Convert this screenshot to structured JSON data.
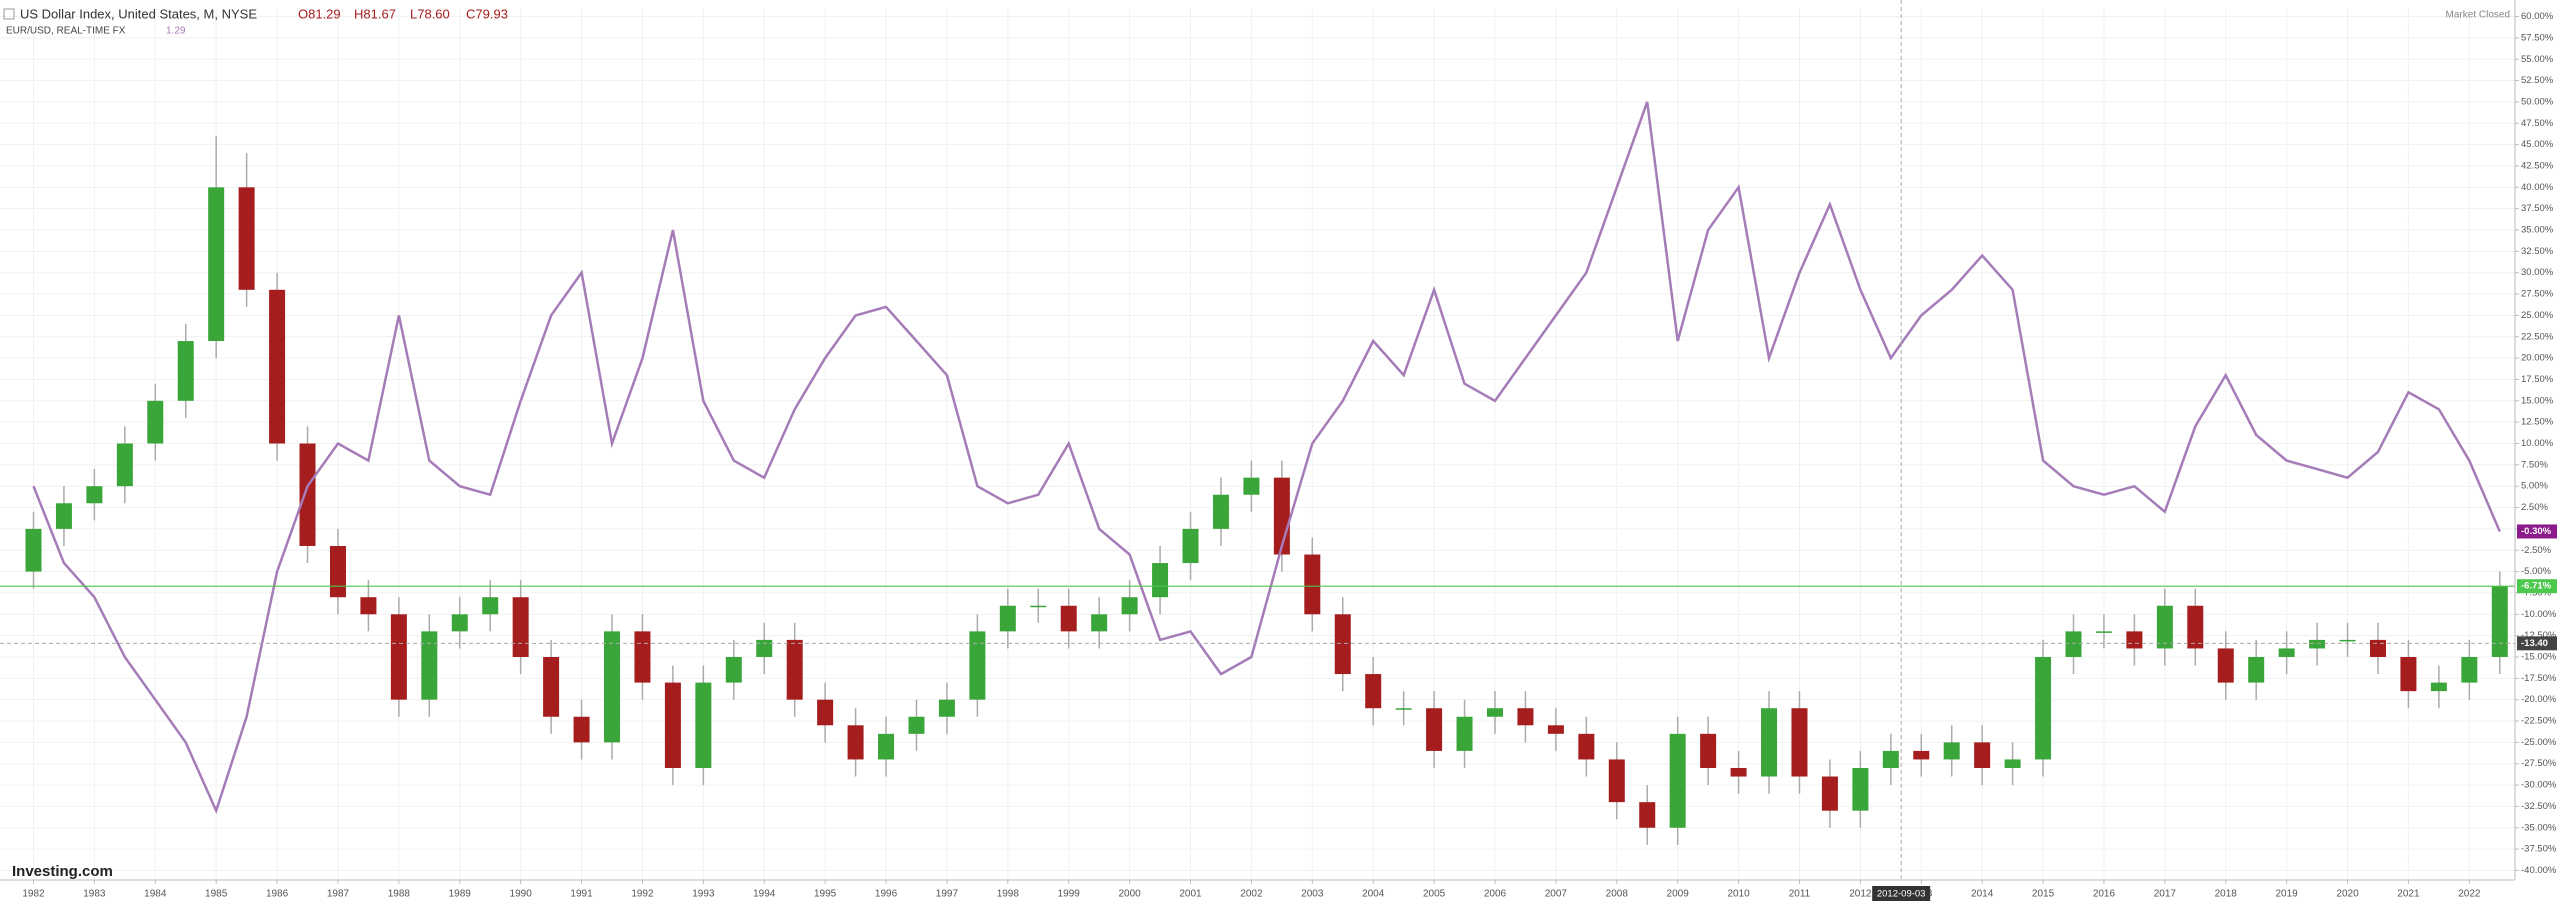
{
  "chart_data": {
    "type": "candlestick-line",
    "ohlc_labels": [
      "O81.29",
      "H81.67",
      "L78.60",
      "C79.93"
    ],
    "subtitle_value": "1.29",
    "status": "Market Closed",
    "logo": "Investing.com",
    "x": [
      1982,
      1982.5,
      1983,
      1983.5,
      1984,
      1984.5,
      1985,
      1985.5,
      1986,
      1986.5,
      1987,
      1987.5,
      1988,
      1988.5,
      1989,
      1989.5,
      1990,
      1990.5,
      1991,
      1991.5,
      1992,
      1992.5,
      1993,
      1993.5,
      1994,
      1994.5,
      1995,
      1995.5,
      1996,
      1996.5,
      1997,
      1997.5,
      1998,
      1998.5,
      1999,
      1999.5,
      2000,
      2000.5,
      2001,
      2001.5,
      2002,
      2002.5,
      2003,
      2003.5,
      2004,
      2004.5,
      2005,
      2005.5,
      2006,
      2006.5,
      2007,
      2007.5,
      2008,
      2008.5,
      2009,
      2009.5,
      2010,
      2010.5,
      2011,
      2011.5,
      2012,
      2012.5,
      2013,
      2013.5,
      2014,
      2014.5,
      2015,
      2015.5,
      2016,
      2016.5,
      2017,
      2017.5,
      2018,
      2018.5,
      2019,
      2019.5,
      2020,
      2020.5,
      2021,
      2021.5,
      2022,
      2022.5
    ],
    "series": [
      {
        "name": "US Dollar Index, United States, M, NYSE",
        "kind": "candlestick",
        "up_color": "#3aa63a",
        "down_color": "#a51d1d",
        "open": [
          -5,
          0,
          3,
          5,
          10,
          15,
          22,
          40,
          28,
          10,
          -2,
          -8,
          -10,
          -20,
          -12,
          -10,
          -8,
          -15,
          -22,
          -25,
          -12,
          -18,
          -28,
          -18,
          -15,
          -13,
          -20,
          -23,
          -27,
          -24,
          -22,
          -20,
          -12,
          -9,
          -9,
          -12,
          -10,
          -8,
          -4,
          0,
          4,
          6,
          -3,
          -10,
          -17,
          -21,
          -21,
          -26,
          -22,
          -21,
          -23,
          -24,
          -27,
          -32,
          -35,
          -24,
          -28,
          -29,
          -21,
          -29,
          -33,
          -28,
          -26,
          -27,
          -25,
          -28,
          -27,
          -15,
          -12,
          -12,
          -14,
          -9,
          -14,
          -18,
          -15,
          -14,
          -13,
          -13,
          -15,
          -19,
          -18,
          -15
        ],
        "high": [
          2,
          5,
          7,
          12,
          17,
          24,
          46,
          44,
          30,
          12,
          0,
          -6,
          -8,
          -10,
          -8,
          -6,
          -6,
          -13,
          -20,
          -10,
          -10,
          -16,
          -16,
          -13,
          -11,
          -11,
          -18,
          -21,
          -22,
          -20,
          -18,
          -10,
          -7,
          -7,
          -7,
          -8,
          -6,
          -2,
          2,
          6,
          8,
          8,
          -1,
          -8,
          -15,
          -19,
          -19,
          -20,
          -19,
          -19,
          -21,
          -22,
          -25,
          -30,
          -22,
          -22,
          -26,
          -19,
          -19,
          -27,
          -26,
          -24,
          -24,
          -23,
          -23,
          -25,
          -13,
          -10,
          -10,
          -10,
          -7,
          -7,
          -12,
          -13,
          -12,
          -11,
          -11,
          -11,
          -13,
          -16,
          -13,
          -5
        ],
        "low": [
          -7,
          -2,
          1,
          3,
          8,
          13,
          20,
          26,
          8,
          -4,
          -10,
          -12,
          -22,
          -22,
          -14,
          -12,
          -17,
          -24,
          -27,
          -27,
          -20,
          -30,
          -30,
          -20,
          -17,
          -22,
          -25,
          -29,
          -29,
          -26,
          -24,
          -22,
          -14,
          -11,
          -14,
          -14,
          -12,
          -10,
          -6,
          -2,
          2,
          -5,
          -12,
          -19,
          -23,
          -23,
          -28,
          -28,
          -24,
          -25,
          -26,
          -29,
          -34,
          -37,
          -37,
          -30,
          -31,
          -31,
          -31,
          -35,
          -35,
          -30,
          -29,
          -29,
          -30,
          -30,
          -29,
          -17,
          -14,
          -16,
          -16,
          -16,
          -20,
          -20,
          -17,
          -16,
          -15,
          -17,
          -21,
          -21,
          -20,
          -17
        ],
        "close": [
          0,
          3,
          5,
          10,
          15,
          22,
          40,
          28,
          10,
          -2,
          -8,
          -10,
          -20,
          -12,
          -10,
          -8,
          -15,
          -22,
          -25,
          -12,
          -18,
          -28,
          -18,
          -15,
          -13,
          -20,
          -23,
          -27,
          -24,
          -22,
          -20,
          -12,
          -9,
          -9,
          -12,
          -10,
          -8,
          -4,
          0,
          4,
          6,
          -3,
          -10,
          -17,
          -21,
          -21,
          -26,
          -22,
          -21,
          -23,
          -24,
          -27,
          -32,
          -35,
          -24,
          -28,
          -29,
          -21,
          -29,
          -33,
          -28,
          -26,
          -27,
          -25,
          -28,
          -27,
          -15,
          -12,
          -12,
          -14,
          -9,
          -14,
          -18,
          -15,
          -14,
          -13,
          -13,
          -15,
          -19,
          -18,
          -15,
          -6.71
        ]
      },
      {
        "name": "EUR/USD, REAL-TIME FX",
        "kind": "line",
        "color": "#a57bb8",
        "values": [
          5,
          -4,
          -8,
          -15,
          -20,
          -25,
          -33,
          -22,
          -5,
          5,
          10,
          8,
          25,
          8,
          5,
          4,
          15,
          25,
          30,
          10,
          20,
          35,
          15,
          8,
          6,
          14,
          20,
          25,
          26,
          22,
          18,
          5,
          3,
          4,
          10,
          0,
          -3,
          -13,
          -12,
          -17,
          -15,
          -2,
          10,
          15,
          22,
          18,
          28,
          17,
          15,
          20,
          25,
          30,
          40,
          50,
          22,
          35,
          40,
          20,
          30,
          38,
          28,
          20,
          25,
          28,
          32,
          28,
          8,
          5,
          4,
          5,
          2,
          12,
          18,
          11,
          8,
          7,
          6,
          9,
          16,
          14,
          8,
          -0.3
        ]
      }
    ],
    "markers": [
      {
        "label": "-0.30%",
        "value": -0.3,
        "color": "#8b1a8b"
      },
      {
        "label": "-6.71%",
        "value": -6.71,
        "color": "#4cc94c"
      }
    ],
    "crosshair": {
      "x": 2012.67,
      "y": -13.4,
      "x_label": "2012-09-03",
      "y_label": "-13.40"
    },
    "xlim": [
      1981.45,
      2022.75
    ],
    "ylim": [
      -41,
      61
    ],
    "xticks": [
      1982,
      1983,
      1984,
      1985,
      1986,
      1987,
      1988,
      1989,
      1990,
      1991,
      1992,
      1993,
      1994,
      1995,
      1996,
      1997,
      1998,
      1999,
      2000,
      2001,
      2002,
      2003,
      2004,
      2005,
      2006,
      2007,
      2008,
      2009,
      2010,
      2011,
      2012,
      2013,
      2014,
      2015,
      2016,
      2017,
      2018,
      2019,
      2020,
      2021,
      2022
    ],
    "yticks": [
      {
        "value": -40,
        "label": "-40.00%"
      },
      {
        "value": -37.5,
        "label": "-37.50%"
      },
      {
        "value": -35,
        "label": "-35.00%"
      },
      {
        "value": -32.5,
        "label": "-32.50%"
      },
      {
        "value": -30,
        "label": "-30.00%"
      },
      {
        "value": -27.5,
        "label": "-27.50%"
      },
      {
        "value": -25,
        "label": "-25.00%"
      },
      {
        "value": -22.5,
        "label": "-22.50%"
      },
      {
        "value": -20,
        "label": "-20.00%"
      },
      {
        "value": -17.5,
        "label": "-17.50%"
      },
      {
        "value": -15,
        "label": "-15.00%"
      },
      {
        "value": -12.5,
        "label": "-12.50%"
      },
      {
        "value": -10,
        "label": "-10.00%"
      },
      {
        "value": -7.5,
        "label": "-7.50%"
      },
      {
        "value": -5,
        "label": "-5.00%"
      },
      {
        "value": -2.5,
        "label": "-2.50%"
      },
      {
        "value": 0,
        "label": "0.00%"
      },
      {
        "value": 2.5,
        "label": "2.50%"
      },
      {
        "value": 5,
        "label": "5.00%"
      },
      {
        "value": 7.5,
        "label": "7.50%"
      },
      {
        "value": 10,
        "label": "10.00%"
      },
      {
        "value": 12.5,
        "label": "12.50%"
      },
      {
        "value": 15,
        "label": "15.00%"
      },
      {
        "value": 17.5,
        "label": "17.50%"
      },
      {
        "value": 20,
        "label": "20.00%"
      },
      {
        "value": 22.5,
        "label": "22.50%"
      },
      {
        "value": 25,
        "label": "25.00%"
      },
      {
        "value": 27.5,
        "label": "27.50%"
      },
      {
        "value": 30,
        "label": "30.00%"
      },
      {
        "value": 32.5,
        "label": "32.50%"
      },
      {
        "value": 35,
        "label": "35.00%"
      },
      {
        "value": 37.5,
        "label": "37.50%"
      },
      {
        "value": 40,
        "label": "40.00%"
      },
      {
        "value": 42.5,
        "label": "42.50%"
      },
      {
        "value": 45,
        "label": "45.00%"
      },
      {
        "value": 47.5,
        "label": "47.50%"
      },
      {
        "value": 50,
        "label": "50.00%"
      },
      {
        "value": 52.5,
        "label": "52.50%"
      },
      {
        "value": 55,
        "label": "55.00%"
      },
      {
        "value": 57.5,
        "label": "57.50%"
      },
      {
        "value": 60,
        "label": "60.00%"
      }
    ],
    "grid": true
  }
}
